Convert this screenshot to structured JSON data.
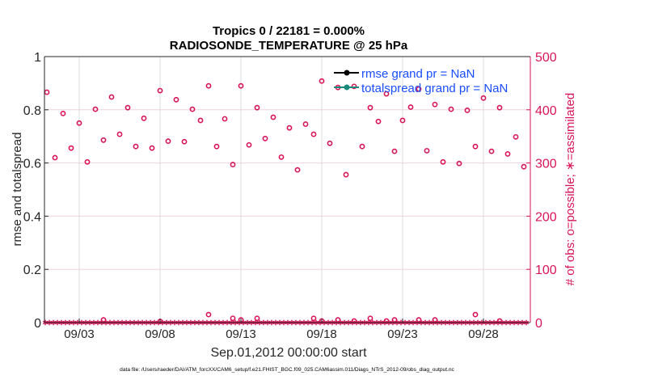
{
  "chart_data": {
    "type": "scatter",
    "title": [
      "Tropics 0 / 22181 = 0.000%",
      "RADIOSONDE_TEMPERATURE @ 25 hPa"
    ],
    "xlabel": "Sep.01,2012 00:00:00 start",
    "ylabel_left": "rmse and totalspread",
    "ylabel_right": "# of obs: o=possible; ∗=assimilated",
    "footnote": "data file: /Users/raeder/DAI/ATM_forcXX/CAM6_setup/f.e21.FHIST_BGC.f09_025.CAM6assim.011/Diags_NTrS_2012-09/obs_diag_output.nc",
    "xlim_day_of_month": [
      0.85,
      30.9
    ],
    "x_ticks": [
      {
        "day": 3,
        "label": "09/03"
      },
      {
        "day": 8,
        "label": "09/08"
      },
      {
        "day": 13,
        "label": "09/13"
      },
      {
        "day": 18,
        "label": "09/18"
      },
      {
        "day": 23,
        "label": "09/23"
      },
      {
        "day": 28,
        "label": "09/28"
      }
    ],
    "ylim_left": [
      0,
      1
    ],
    "y_ticks_left": [
      "0",
      "0.2",
      "0.4",
      "0.6",
      "0.8",
      "1"
    ],
    "ylim_right": [
      0,
      500
    ],
    "y_ticks_right": [
      "0",
      "100",
      "200",
      "300",
      "400",
      "500"
    ],
    "grid": true,
    "legend_position": "top-right",
    "legend": [
      {
        "label": "rmse grand pr = NaN",
        "color": "#000000"
      },
      {
        "label": "totalspread grand pr = NaN",
        "color": "#1a8a7a"
      }
    ],
    "series": [
      {
        "name": "possible obs count (o)",
        "axis": "right",
        "x_start_day": 1.0,
        "x_step_day": 0.5,
        "values": [
          433,
          310,
          393,
          328,
          375,
          302,
          401,
          343,
          424,
          354,
          404,
          331,
          384,
          328,
          436,
          341,
          419,
          340,
          401,
          380,
          445,
          331,
          383,
          297,
          445,
          334,
          404,
          346,
          386,
          311,
          366,
          287,
          373,
          354,
          454,
          337,
          442,
          278,
          444,
          331,
          404,
          378,
          430,
          322,
          380,
          405,
          439,
          323,
          410,
          302,
          401,
          299,
          399,
          331,
          422,
          322,
          404,
          317,
          349,
          293
        ]
      },
      {
        "name": "possible obs count (o), low",
        "axis": "right",
        "points": [
          [
            4.5,
            5
          ],
          [
            8,
            2
          ],
          [
            11,
            15
          ],
          [
            12.5,
            8
          ],
          [
            13,
            5
          ],
          [
            14,
            8
          ],
          [
            17.5,
            8
          ],
          [
            18,
            3
          ],
          [
            19,
            5
          ],
          [
            20,
            3
          ],
          [
            21,
            8
          ],
          [
            22,
            3
          ],
          [
            22.5,
            5
          ],
          [
            24,
            5
          ],
          [
            25,
            5
          ],
          [
            27.5,
            15
          ],
          [
            29,
            3
          ]
        ]
      },
      {
        "name": "assimilated obs count (*)",
        "axis": "right",
        "x_start_day": 0.9,
        "x_step_day": 0.25,
        "count": 120,
        "value": 0
      }
    ],
    "colors": {
      "obs": "#d81557",
      "legend_text": "#1a4dff",
      "grid": "#dcdcdc",
      "grid_h": "#f0d4dc"
    }
  }
}
